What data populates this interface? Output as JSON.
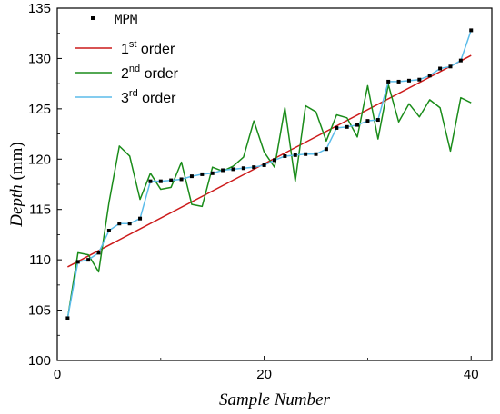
{
  "chart_data": {
    "type": "line",
    "xlabel": "Sample Number",
    "ylabel_main": "Depth",
    "ylabel_unit": " (mm)",
    "xlim": [
      0,
      42
    ],
    "ylim": [
      100,
      135
    ],
    "xticks": [
      0,
      20,
      40
    ],
    "yticks": [
      100,
      105,
      110,
      115,
      120,
      125,
      130,
      135
    ],
    "legend_position": "top-left",
    "series": [
      {
        "name": "MPM",
        "type": "scatter",
        "color": "#000000",
        "x": [
          1,
          2,
          3,
          4,
          5,
          6,
          7,
          8,
          9,
          10,
          11,
          12,
          13,
          14,
          15,
          16,
          17,
          18,
          19,
          20,
          21,
          22,
          23,
          24,
          25,
          26,
          27,
          28,
          29,
          30,
          31,
          32,
          33,
          34,
          35,
          36,
          37,
          38,
          39,
          40
        ],
        "y": [
          104.2,
          109.8,
          110.0,
          110.7,
          112.9,
          113.6,
          113.6,
          114.1,
          117.8,
          117.8,
          117.9,
          118.0,
          118.3,
          118.5,
          118.6,
          118.9,
          119.0,
          119.1,
          119.2,
          119.4,
          119.9,
          120.3,
          120.4,
          120.5,
          120.5,
          121.0,
          123.1,
          123.2,
          123.4,
          123.8,
          123.9,
          127.7,
          127.7,
          127.8,
          127.9,
          128.3,
          129.0,
          129.2,
          129.8,
          132.8
        ]
      },
      {
        "name_main": "1",
        "name_sup": "st",
        "name_rest": " order",
        "type": "line",
        "color": "#cc1a1a",
        "x": [
          1,
          40
        ],
        "y": [
          109.3,
          130.3
        ]
      },
      {
        "name_main": "2",
        "name_sup": "nd",
        "name_rest": " order",
        "type": "line",
        "color": "#1a8c1a",
        "x": [
          1,
          2,
          3,
          4,
          5,
          6,
          7,
          8,
          9,
          10,
          11,
          12,
          13,
          14,
          15,
          16,
          17,
          18,
          19,
          20,
          21,
          22,
          23,
          24,
          25,
          26,
          27,
          28,
          29,
          30,
          31,
          32,
          33,
          34,
          35,
          36,
          37,
          38,
          39,
          40
        ],
        "y": [
          104.2,
          110.7,
          110.5,
          108.8,
          115.7,
          121.3,
          120.3,
          116.0,
          118.6,
          117.0,
          117.2,
          119.7,
          115.5,
          115.3,
          119.2,
          118.8,
          119.3,
          120.2,
          123.8,
          120.7,
          119.2,
          125.1,
          117.8,
          125.3,
          124.7,
          121.8,
          124.4,
          124.1,
          122.2,
          127.3,
          122.0,
          127.4,
          123.7,
          125.5,
          124.2,
          125.9,
          125.1,
          120.8,
          126.1,
          125.6
        ]
      },
      {
        "name_main": "3",
        "name_sup": "rd",
        "name_rest": " order",
        "type": "line",
        "color": "#5bbcea",
        "x": [
          1,
          2,
          3,
          4,
          5,
          6,
          7,
          8,
          9,
          10,
          11,
          12,
          13,
          14,
          15,
          16,
          17,
          18,
          19,
          20,
          21,
          22,
          23,
          24,
          25,
          26,
          27,
          28,
          29,
          30,
          31,
          32,
          33,
          34,
          35,
          36,
          37,
          38,
          39,
          40
        ],
        "y": [
          104.2,
          109.8,
          110.0,
          110.7,
          112.9,
          113.6,
          113.6,
          114.1,
          117.8,
          117.8,
          117.9,
          118.0,
          118.3,
          118.5,
          118.6,
          118.9,
          119.0,
          119.1,
          119.2,
          119.4,
          119.9,
          120.3,
          120.4,
          120.5,
          120.5,
          121.0,
          123.1,
          123.2,
          123.4,
          123.8,
          123.9,
          127.7,
          127.7,
          127.8,
          127.9,
          128.3,
          129.0,
          129.2,
          129.8,
          132.8
        ]
      }
    ]
  }
}
